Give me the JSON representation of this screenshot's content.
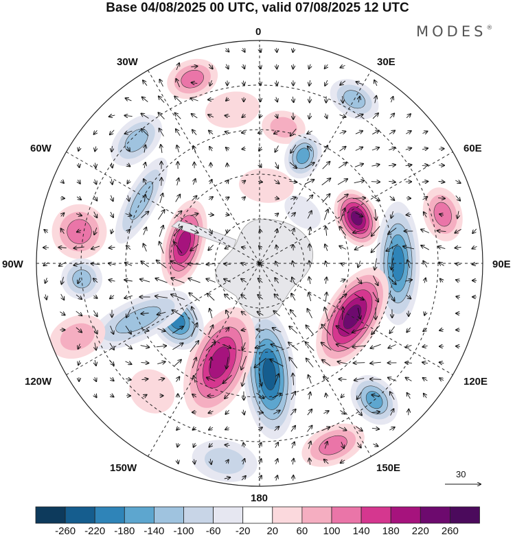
{
  "title": "Base 04/08/2025 00 UTC, valid 07/08/2025 12 UTC",
  "brand": {
    "name": "MODES",
    "mark": "®"
  },
  "longitude_labels": {
    "top": "0",
    "top_left": "30W",
    "top_right": "30E",
    "upper_left": "60W",
    "upper_right": "60E",
    "left": "90W",
    "right": "90E",
    "lower_left": "120W",
    "lower_right": "120E",
    "bottom_left": "150W",
    "bottom_right": "150E",
    "bottom": "180"
  },
  "reference_vector": {
    "label": "30"
  },
  "colorbar": {
    "labels": [
      "-260",
      "-220",
      "-180",
      "-140",
      "-100",
      "-60",
      "-20",
      "20",
      "60",
      "100",
      "140",
      "180",
      "220",
      "260"
    ],
    "colors": [
      "#0d3a5c",
      "#155d8e",
      "#2f84b8",
      "#5da6cf",
      "#9fc3df",
      "#c8d5e7",
      "#e6e7f1",
      "#ffffff",
      "#fbd9dd",
      "#f5aec1",
      "#ea75a8",
      "#d5378f",
      "#a6137d",
      "#6d0a6e",
      "#4b0a5c"
    ]
  },
  "anomalies": [
    {
      "lon": -170,
      "r": 0.9,
      "a": 48,
      "b": 30,
      "v": -60
    },
    {
      "lon": -45,
      "r": 0.78,
      "a": 45,
      "b": 28,
      "v": -100
    },
    {
      "lon": -20,
      "r": 0.88,
      "a": 38,
      "b": 28,
      "v": 100
    },
    {
      "lon": 10,
      "r": 0.62,
      "a": 32,
      "b": 24,
      "v": 60
    },
    {
      "lon": -10,
      "r": 0.7,
      "a": 40,
      "b": 26,
      "v": 20
    },
    {
      "lon": 30,
      "r": 0.85,
      "a": 38,
      "b": 26,
      "v": -100
    },
    {
      "lon": 22,
      "r": 0.52,
      "a": 26,
      "b": 34,
      "v": -140
    },
    {
      "lon": 65,
      "r": 0.48,
      "a": 44,
      "b": 30,
      "v": 220
    },
    {
      "lon": 75,
      "r": 0.85,
      "a": 40,
      "b": 28,
      "v": 100
    },
    {
      "lon": 90,
      "r": 0.62,
      "a": 90,
      "b": 32,
      "v": -180
    },
    {
      "lon": 120,
      "r": 0.48,
      "a": 80,
      "b": 40,
      "v": 240
    },
    {
      "lon": 140,
      "r": 0.8,
      "a": 30,
      "b": 40,
      "v": -140
    },
    {
      "lon": 158,
      "r": 0.88,
      "a": 48,
      "b": 28,
      "v": 100
    },
    {
      "lon": 175,
      "r": 0.5,
      "a": 38,
      "b": 95,
      "v": -240
    },
    {
      "lon": -158,
      "r": 0.48,
      "a": 45,
      "b": 85,
      "v": 200
    },
    {
      "lon": -125,
      "r": 0.45,
      "a": 45,
      "b": 35,
      "v": -200
    },
    {
      "lon": -115,
      "r": 0.6,
      "a": 30,
      "b": 80,
      "v": -100
    },
    {
      "lon": -75,
      "r": 0.35,
      "a": 65,
      "b": 30,
      "v": 200
    },
    {
      "lon": -62,
      "r": 0.6,
      "a": 70,
      "b": 22,
      "v": -100
    },
    {
      "lon": -80,
      "r": 0.82,
      "a": 40,
      "b": 40,
      "v": 100
    },
    {
      "lon": -95,
      "r": 0.8,
      "a": 30,
      "b": 30,
      "v": -100
    },
    {
      "lon": -112,
      "r": 0.88,
      "a": 30,
      "b": 42,
      "v": 60
    },
    {
      "lon": 5,
      "r": 0.35,
      "a": 40,
      "b": 25,
      "v": 20
    },
    {
      "lon": 40,
      "r": 0.3,
      "a": 30,
      "b": 20,
      "v": -20
    },
    {
      "lon": -140,
      "r": 0.75,
      "a": 35,
      "b": 30,
      "v": 20
    }
  ]
}
